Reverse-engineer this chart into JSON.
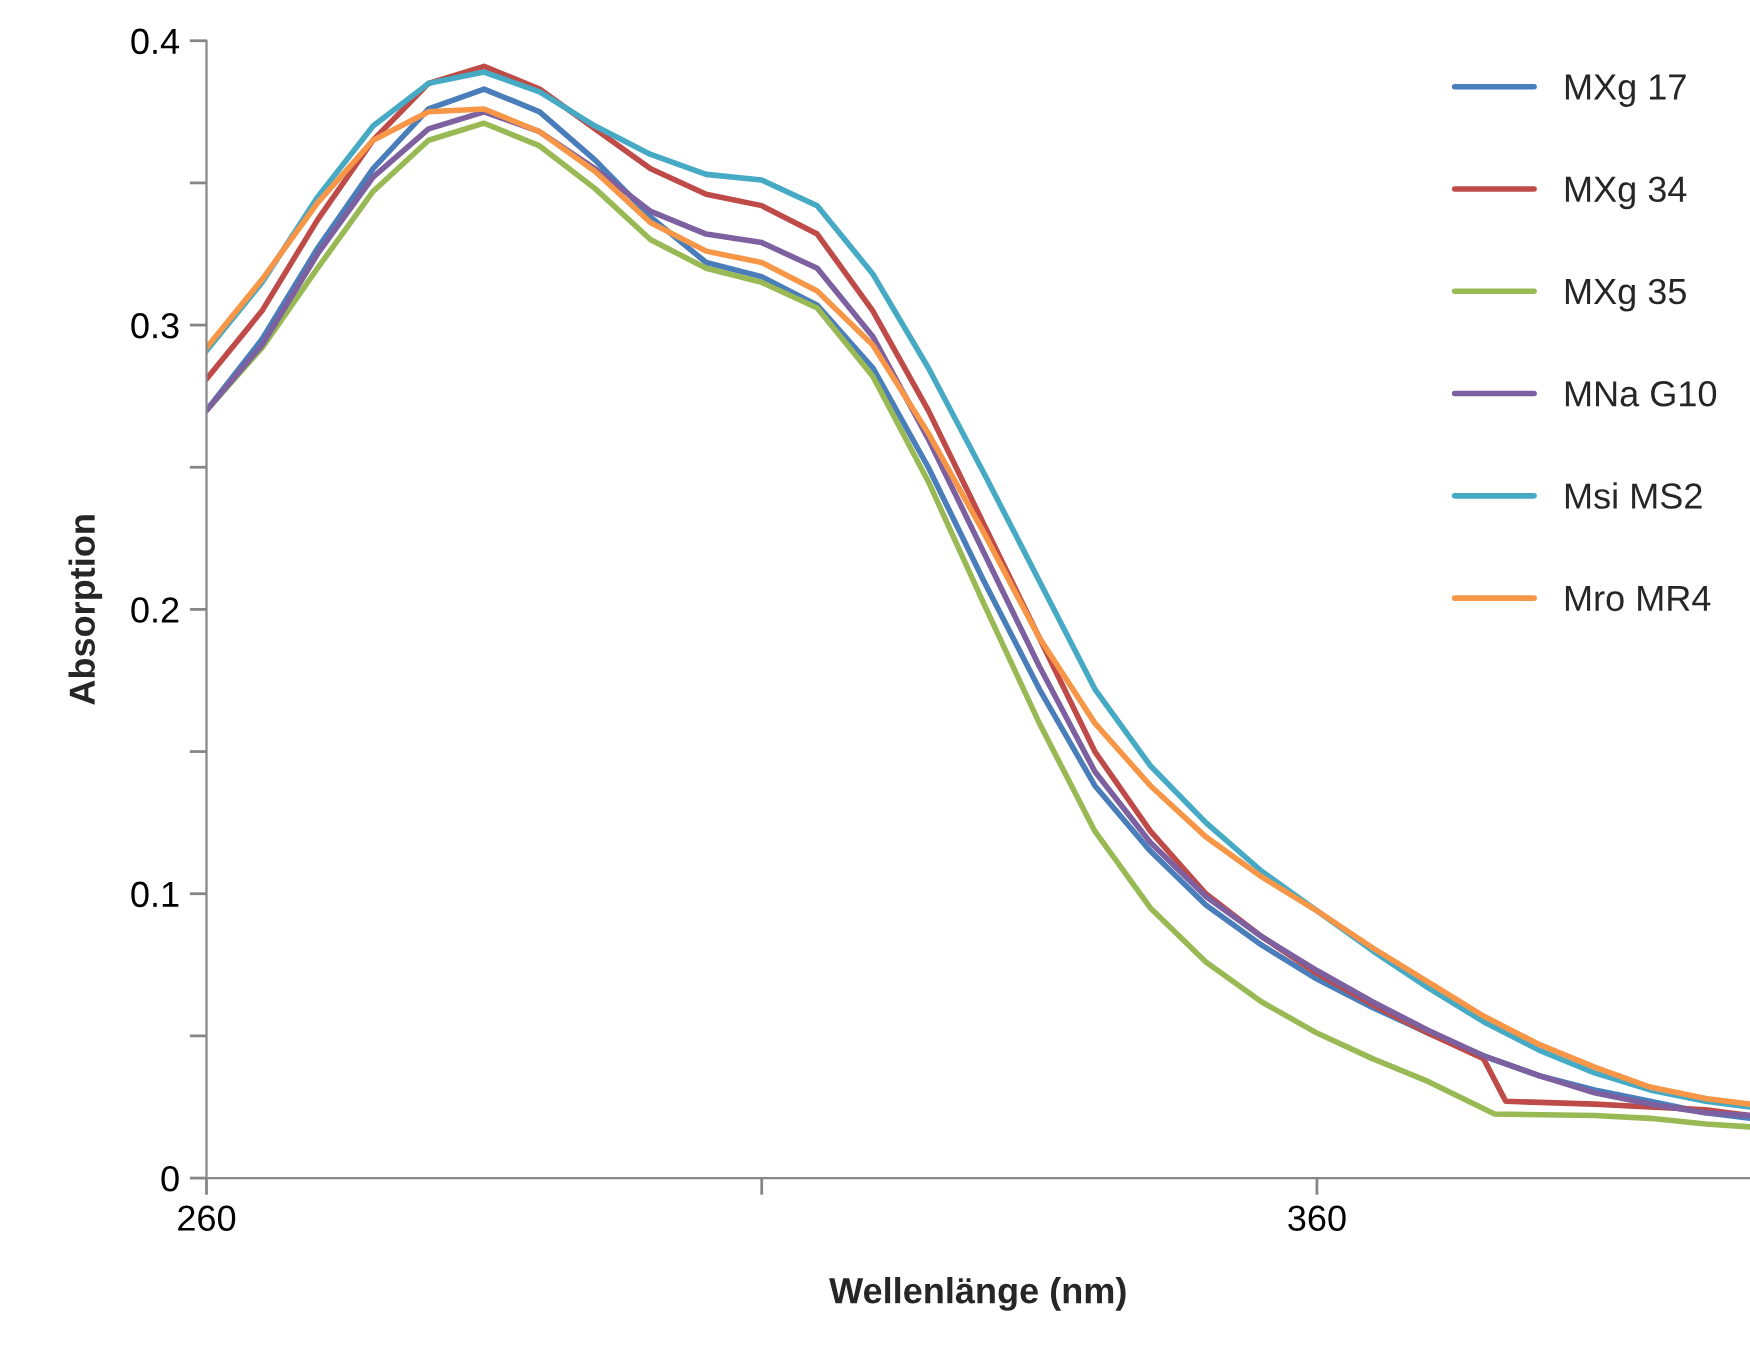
{
  "chart_data": {
    "type": "line",
    "xlabel": "Wellenlänge (nm)",
    "ylabel": "Absorption",
    "xlim": [
      260,
      399
    ],
    "xticks": [
      260,
      {
        "value": 310,
        "label": null
      },
      360
    ],
    "ylim": [
      0,
      0.4
    ],
    "yticks": [
      0,
      {
        "value": 0.05,
        "label": null
      },
      0.1,
      {
        "value": 0.15,
        "label": null
      },
      0.2,
      {
        "value": 0.25,
        "label": null
      },
      0.3,
      {
        "value": 0.35,
        "label": null
      },
      0.4
    ],
    "grid": false,
    "legend": "top right",
    "line_style": "solid",
    "marker": "none",
    "series": [
      {
        "name": "MXg 17",
        "color": "#4a7ebb",
        "x": [
          260,
          265,
          270,
          275,
          280,
          285,
          290,
          295,
          300,
          305,
          310,
          315,
          320,
          325,
          330,
          335,
          340,
          345,
          350,
          355,
          360,
          365,
          370,
          375,
          380,
          385,
          390,
          395,
          399
        ],
        "values": [
          0.27,
          0.295,
          0.327,
          0.355,
          0.376,
          0.383,
          0.375,
          0.358,
          0.338,
          0.322,
          0.317,
          0.307,
          0.285,
          0.25,
          0.21,
          0.172,
          0.138,
          0.115,
          0.096,
          0.082,
          0.07,
          0.06,
          0.051,
          0.043,
          0.036,
          0.031,
          0.027,
          0.023,
          0.021
        ]
      },
      {
        "name": "MXg 34",
        "color": "#be4b48",
        "x": [
          260,
          265,
          270,
          275,
          280,
          285,
          290,
          295,
          300,
          305,
          310,
          315,
          320,
          325,
          330,
          335,
          340,
          345,
          350,
          355,
          360,
          365,
          370,
          375,
          377,
          385,
          390,
          395,
          399
        ],
        "values": [
          0.281,
          0.305,
          0.337,
          0.365,
          0.385,
          0.391,
          0.383,
          0.369,
          0.355,
          0.346,
          0.342,
          0.332,
          0.305,
          0.27,
          0.23,
          0.19,
          0.15,
          0.122,
          0.1,
          0.085,
          0.072,
          0.061,
          0.051,
          0.042,
          0.027,
          0.026,
          0.025,
          0.024,
          0.022
        ]
      },
      {
        "name": "MXg 35",
        "color": "#98b954",
        "x": [
          260,
          265,
          270,
          275,
          280,
          285,
          290,
          295,
          300,
          305,
          310,
          315,
          320,
          325,
          330,
          335,
          340,
          345,
          350,
          355,
          360,
          365,
          370,
          376,
          385,
          390,
          395,
          399
        ],
        "values": [
          0.27,
          0.292,
          0.32,
          0.347,
          0.365,
          0.371,
          0.363,
          0.348,
          0.33,
          0.32,
          0.315,
          0.306,
          0.282,
          0.245,
          0.202,
          0.16,
          0.122,
          0.095,
          0.076,
          0.062,
          0.051,
          0.042,
          0.034,
          0.0225,
          0.022,
          0.021,
          0.019,
          0.018
        ]
      },
      {
        "name": "MNa G10",
        "color": "#7d60a0",
        "x": [
          260,
          265,
          270,
          275,
          280,
          285,
          290,
          295,
          300,
          305,
          310,
          315,
          320,
          325,
          330,
          335,
          340,
          345,
          350,
          355,
          360,
          365,
          370,
          375,
          380,
          385,
          390,
          395,
          399
        ],
        "values": [
          0.27,
          0.293,
          0.325,
          0.352,
          0.369,
          0.375,
          0.368,
          0.355,
          0.34,
          0.332,
          0.329,
          0.32,
          0.296,
          0.26,
          0.22,
          0.18,
          0.143,
          0.118,
          0.099,
          0.085,
          0.073,
          0.062,
          0.052,
          0.043,
          0.036,
          0.03,
          0.026,
          0.023,
          0.022
        ]
      },
      {
        "name": "Msi MS2",
        "color": "#46aac5",
        "x": [
          260,
          265,
          270,
          275,
          280,
          285,
          290,
          295,
          300,
          305,
          310,
          315,
          320,
          325,
          330,
          335,
          340,
          345,
          350,
          355,
          360,
          365,
          370,
          375,
          380,
          385,
          390,
          395,
          399
        ],
        "values": [
          0.291,
          0.315,
          0.345,
          0.37,
          0.385,
          0.389,
          0.382,
          0.37,
          0.36,
          0.353,
          0.351,
          0.342,
          0.318,
          0.285,
          0.248,
          0.21,
          0.172,
          0.145,
          0.125,
          0.108,
          0.094,
          0.08,
          0.067,
          0.055,
          0.045,
          0.037,
          0.031,
          0.027,
          0.025
        ]
      },
      {
        "name": "Mro MR4",
        "color": "#f79646",
        "x": [
          260,
          265,
          270,
          275,
          280,
          285,
          290,
          295,
          300,
          305,
          310,
          315,
          320,
          325,
          330,
          335,
          340,
          345,
          350,
          355,
          360,
          365,
          370,
          375,
          380,
          385,
          390,
          395,
          399
        ],
        "values": [
          0.292,
          0.316,
          0.343,
          0.365,
          0.375,
          0.376,
          0.368,
          0.354,
          0.336,
          0.326,
          0.322,
          0.312,
          0.293,
          0.262,
          0.227,
          0.19,
          0.16,
          0.138,
          0.12,
          0.106,
          0.094,
          0.081,
          0.069,
          0.057,
          0.047,
          0.039,
          0.032,
          0.028,
          0.026
        ]
      }
    ]
  }
}
